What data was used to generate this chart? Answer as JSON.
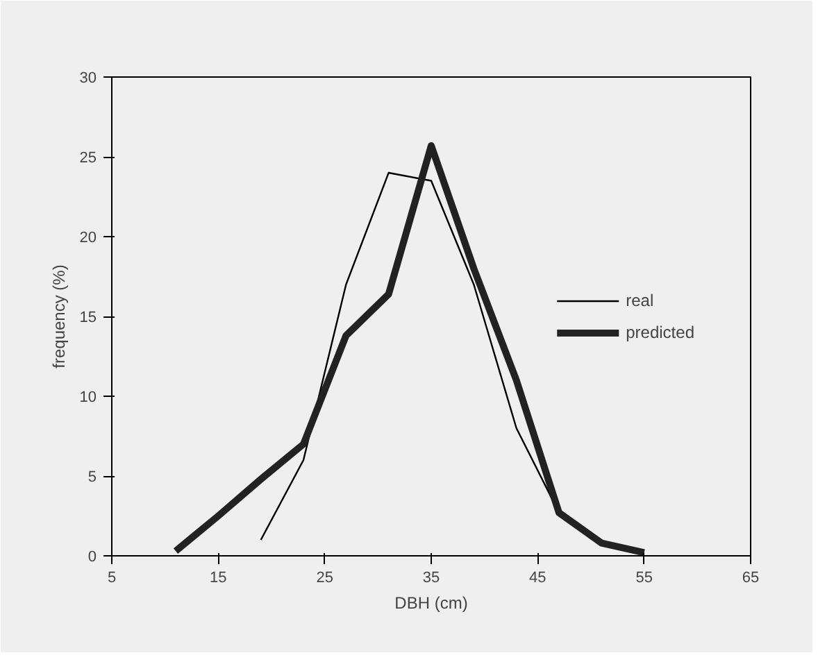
{
  "chart_data": {
    "type": "line",
    "xlabel": "DBH (cm)",
    "ylabel": "frequency (%)",
    "xlim": [
      5,
      65
    ],
    "xticks": [
      5,
      15,
      25,
      35,
      45,
      55,
      65
    ],
    "ylim": [
      0,
      30
    ],
    "yticks": [
      0,
      5,
      10,
      15,
      20,
      25,
      30
    ],
    "grid": false,
    "legend": "right",
    "marker": "none",
    "line_style": "solid",
    "series": [
      {
        "name": "real",
        "color": "#000000",
        "x": [
          19,
          23,
          27,
          31,
          35,
          39,
          43,
          47,
          51,
          55
        ],
        "values": [
          1,
          6,
          17,
          24,
          23.5,
          17,
          8,
          2.7,
          0.8,
          0.2
        ]
      },
      {
        "name": "predicted",
        "color": "#222222",
        "x": [
          11,
          15,
          19,
          23,
          27,
          31,
          35,
          39,
          43,
          47,
          51,
          55
        ],
        "values": [
          0.3,
          2.5,
          4.8,
          7,
          13.8,
          16.4,
          25.7,
          18,
          11,
          2.7,
          0.8,
          0.2
        ]
      }
    ]
  }
}
